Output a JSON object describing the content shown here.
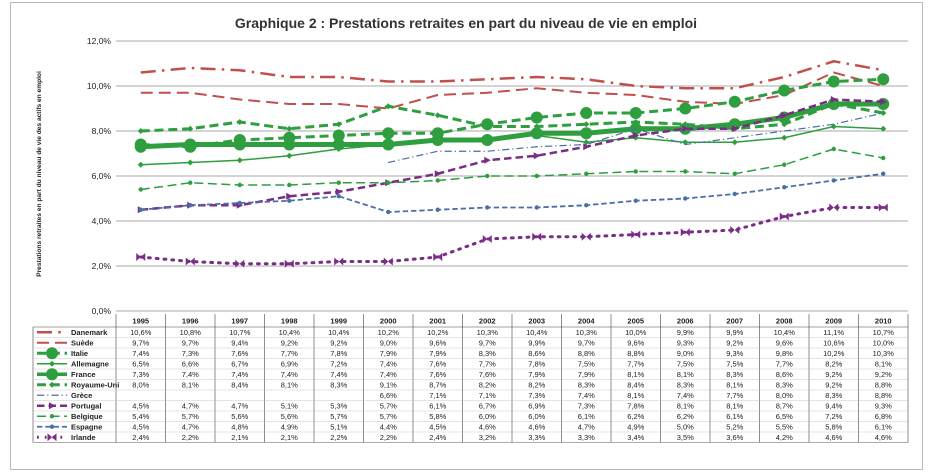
{
  "chart_data": {
    "type": "line",
    "title": "Graphique 2 : Prestations retraites en part du niveau de vie en emploi",
    "ylabel": "Prestations retraites en part du niveau de vie des actifs en emploi",
    "ylim": [
      0,
      12
    ],
    "yticks": [
      "0,0%",
      "2,0%",
      "4,0%",
      "6,0%",
      "8,0%",
      "10,0%",
      "12,0%"
    ],
    "grid": true,
    "legend": "data-table",
    "x": [
      "1995",
      "1996",
      "1997",
      "1998",
      "1999",
      "2000",
      "2001",
      "2002",
      "2003",
      "2004",
      "2005",
      "2006",
      "2007",
      "2008",
      "2009",
      "2010"
    ],
    "series": [
      {
        "name": "Danemark",
        "color": "#c0504d",
        "style": "dashdot",
        "width": 2.5,
        "marker": "none",
        "values": [
          10.6,
          10.8,
          10.7,
          10.4,
          10.4,
          10.2,
          10.2,
          10.3,
          10.4,
          10.3,
          10.0,
          9.9,
          9.9,
          10.4,
          11.1,
          10.7
        ],
        "labels": [
          "10,6%",
          "10,8%",
          "10,7%",
          "10,4%",
          "10,4%",
          "10,2%",
          "10,2%",
          "10,3%",
          "10,4%",
          "10,3%",
          "10,0%",
          "9,9%",
          "9,9%",
          "10,4%",
          "11,1%",
          "10,7%"
        ]
      },
      {
        "name": "Suède",
        "color": "#c0504d",
        "style": "longdash",
        "width": 2,
        "marker": "none",
        "values": [
          9.7,
          9.7,
          9.4,
          9.2,
          9.2,
          9.0,
          9.6,
          9.7,
          9.9,
          9.7,
          9.6,
          9.3,
          9.2,
          9.6,
          10.6,
          10.0
        ],
        "labels": [
          "9,7%",
          "9,7%",
          "9,4%",
          "9,2%",
          "9,2%",
          "9,0%",
          "9,6%",
          "9,7%",
          "9,9%",
          "9,7%",
          "9,6%",
          "9,3%",
          "9,2%",
          "9,6%",
          "10,6%",
          "10,0%"
        ]
      },
      {
        "name": "Italie",
        "color": "#2e9e3e",
        "style": "dash",
        "width": 3,
        "marker": "circle-large",
        "values": [
          7.4,
          7.3,
          7.6,
          7.7,
          7.8,
          7.9,
          7.9,
          8.3,
          8.6,
          8.8,
          8.8,
          9.0,
          9.3,
          9.8,
          10.2,
          10.3
        ],
        "labels": [
          "7,4%",
          "7,3%",
          "7,6%",
          "7,7%",
          "7,8%",
          "7,9%",
          "7,9%",
          "8,3%",
          "8,6%",
          "8,8%",
          "8,8%",
          "9,0%",
          "9,3%",
          "9,8%",
          "10,2%",
          "10,3%"
        ]
      },
      {
        "name": "Allemagne",
        "color": "#2e9e3e",
        "style": "solid",
        "width": 1.5,
        "marker": "diamond",
        "values": [
          6.5,
          6.6,
          6.7,
          6.9,
          7.2,
          7.4,
          7.6,
          7.7,
          7.8,
          7.5,
          7.7,
          7.5,
          7.5,
          7.7,
          8.2,
          8.1
        ],
        "labels": [
          "6,5%",
          "6,6%",
          "6,7%",
          "6,9%",
          "7,2%",
          "7,4%",
          "7,6%",
          "7,7%",
          "7,8%",
          "7,5%",
          "7,7%",
          "7,5%",
          "7,5%",
          "7,7%",
          "8,2%",
          "8,1%"
        ]
      },
      {
        "name": "France",
        "color": "#2e9e3e",
        "style": "solid",
        "width": 5,
        "marker": "circle-large",
        "values": [
          7.3,
          7.4,
          7.4,
          7.4,
          7.4,
          7.4,
          7.6,
          7.6,
          7.9,
          7.9,
          8.1,
          8.1,
          8.3,
          8.6,
          9.2,
          9.2
        ],
        "labels": [
          "7,3%",
          "7,4%",
          "7,4%",
          "7,4%",
          "7,4%",
          "7,4%",
          "7,6%",
          "7,6%",
          "7,9%",
          "7,9%",
          "8,1%",
          "8,1%",
          "8,3%",
          "8,6%",
          "9,2%",
          "9,2%"
        ]
      },
      {
        "name": "Royaume-Uni",
        "color": "#2e9e3e",
        "style": "dash",
        "width": 3,
        "marker": "diamond",
        "values": [
          8.0,
          8.1,
          8.4,
          8.1,
          8.3,
          9.1,
          8.7,
          8.2,
          8.2,
          8.3,
          8.4,
          8.3,
          8.1,
          8.3,
          9.2,
          8.8
        ],
        "labels": [
          "8,0%",
          "8,1%",
          "8,4%",
          "8,1%",
          "8,3%",
          "9,1%",
          "8,7%",
          "8,2%",
          "8,2%",
          "8,3%",
          "8,4%",
          "8,3%",
          "8,1%",
          "8,3%",
          "9,2%",
          "8,8%"
        ]
      },
      {
        "name": "Grèce",
        "color": "#4a6fa5",
        "style": "dashdot",
        "width": 1.2,
        "marker": "none",
        "values": [
          null,
          null,
          null,
          null,
          null,
          6.6,
          7.1,
          7.1,
          7.3,
          7.4,
          8.1,
          7.4,
          7.7,
          8.0,
          8.3,
          8.8
        ],
        "labels": [
          "",
          "",
          "",
          "",
          "",
          "6,6%",
          "7,1%",
          "7,1%",
          "7,3%",
          "7,4%",
          "8,1%",
          "7,4%",
          "7,7%",
          "8,0%",
          "8,3%",
          "8,8%"
        ]
      },
      {
        "name": "Portugal",
        "color": "#7b2c86",
        "style": "dash",
        "width": 2.5,
        "marker": "triangle-right",
        "values": [
          4.5,
          4.7,
          4.7,
          5.1,
          5.3,
          5.7,
          6.1,
          6.7,
          6.9,
          7.3,
          7.8,
          8.1,
          8.1,
          8.7,
          9.4,
          9.3
        ],
        "labels": [
          "4,5%",
          "4,7%",
          "4,7%",
          "5,1%",
          "5,3%",
          "5,7%",
          "6,1%",
          "6,7%",
          "6,9%",
          "7,3%",
          "7,8%",
          "8,1%",
          "8,1%",
          "8,7%",
          "9,4%",
          "9,3%"
        ]
      },
      {
        "name": "Belgique",
        "color": "#2e9e3e",
        "style": "longdash",
        "width": 1.5,
        "marker": "circle-small",
        "values": [
          5.4,
          5.7,
          5.6,
          5.6,
          5.7,
          5.7,
          5.8,
          6.0,
          6.0,
          6.1,
          6.2,
          6.2,
          6.1,
          6.5,
          7.2,
          6.8
        ],
        "labels": [
          "5,4%",
          "5,7%",
          "5,6%",
          "5,6%",
          "5,7%",
          "5,7%",
          "5,8%",
          "6,0%",
          "6,0%",
          "6,1%",
          "6,2%",
          "6,2%",
          "6,1%",
          "6,5%",
          "7,2%",
          "6,8%"
        ]
      },
      {
        "name": "Espagne",
        "color": "#4a6fa5",
        "style": "dash",
        "width": 1.8,
        "marker": "circle-small",
        "values": [
          4.5,
          4.7,
          4.8,
          4.9,
          5.1,
          4.4,
          4.5,
          4.6,
          4.6,
          4.7,
          4.9,
          5.0,
          5.2,
          5.5,
          5.8,
          6.1
        ],
        "labels": [
          "4,5%",
          "4,7%",
          "4,8%",
          "4,9%",
          "5,1%",
          "4,4%",
          "4,5%",
          "4,6%",
          "4,6%",
          "4,7%",
          "4,9%",
          "5,0%",
          "5,2%",
          "5,5%",
          "5,8%",
          "6,1%"
        ]
      },
      {
        "name": "Irlande",
        "color": "#7b2c86",
        "style": "dot",
        "width": 3,
        "marker": "bowtie",
        "values": [
          2.4,
          2.2,
          2.1,
          2.1,
          2.2,
          2.2,
          2.4,
          3.2,
          3.3,
          3.3,
          3.4,
          3.5,
          3.6,
          4.2,
          4.6,
          4.6
        ],
        "labels": [
          "2,4%",
          "2,2%",
          "2,1%",
          "2,1%",
          "2,2%",
          "2,2%",
          "2,4%",
          "3,2%",
          "3,3%",
          "3,3%",
          "3,4%",
          "3,5%",
          "3,6%",
          "4,2%",
          "4,6%",
          "4,6%"
        ]
      }
    ]
  }
}
